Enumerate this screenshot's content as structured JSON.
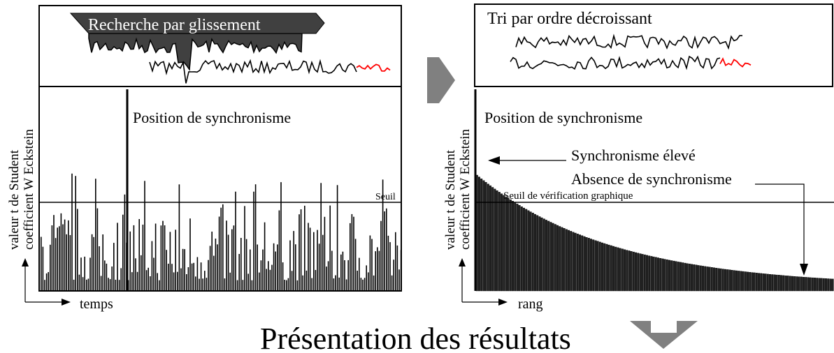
{
  "left_panel": {
    "banner": "Recherche par glissement",
    "sync_label": "Position de synchronisme",
    "threshold_label": "Seuil",
    "y_label_line1": "valeur t de Student",
    "y_label_line2": "coefficient W Eckstein",
    "x_label": "temps"
  },
  "right_panel": {
    "sort_label": "Tri par ordre décroissant",
    "sync_label": "Position de synchronisme",
    "high_sync_label": "Synchronisme élevé",
    "no_sync_label": "Absence de synchronisme",
    "threshold_label": "Seuil de vérification graphique",
    "y_label_line1": "valeur t de Student",
    "y_label_line2": "coefficient W Eckstein",
    "x_label": "rang"
  },
  "footer": {
    "title": "Présentation des résultats"
  },
  "colors": {
    "ink": "#000000",
    "signal_highlight": "#ff0000",
    "arrow_grey": "#808080",
    "banner_fill": "#404040"
  }
}
